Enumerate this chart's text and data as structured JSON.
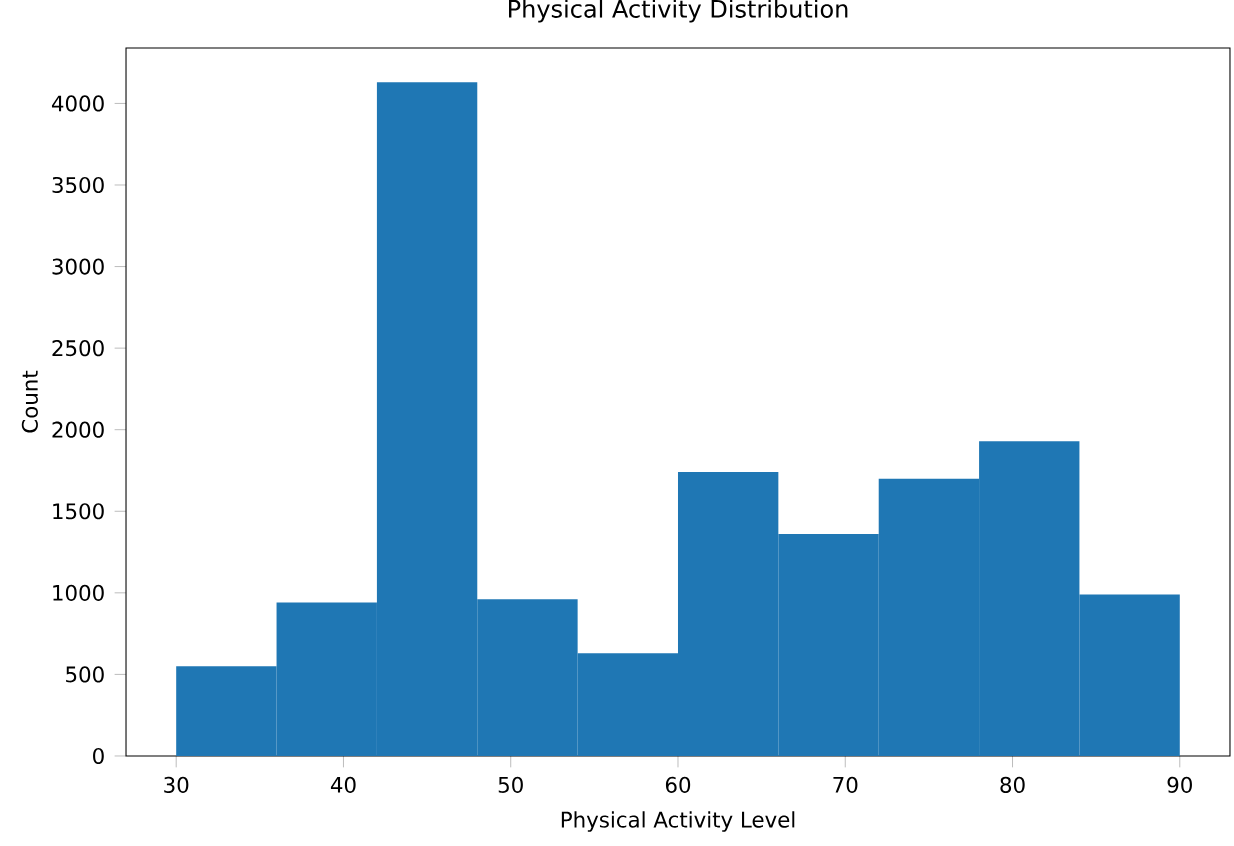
{
  "chart_data": {
    "type": "histogram",
    "title": "Physical Activity Distribution",
    "xlabel": "Physical Activity Level",
    "ylabel": "Count",
    "bins": [
      30,
      36,
      42,
      48,
      54,
      60,
      66,
      72,
      78,
      84,
      90
    ],
    "values": [
      550,
      940,
      4130,
      960,
      630,
      1740,
      1360,
      1700,
      1930,
      990
    ],
    "color": "#1f77b4",
    "xlim": [
      27,
      93
    ],
    "ylim": [
      0,
      4340
    ],
    "xticks": [
      30,
      40,
      50,
      60,
      70,
      80,
      90
    ],
    "yticks": [
      0,
      500,
      1000,
      1500,
      2000,
      2500,
      3000,
      3500,
      4000
    ]
  }
}
